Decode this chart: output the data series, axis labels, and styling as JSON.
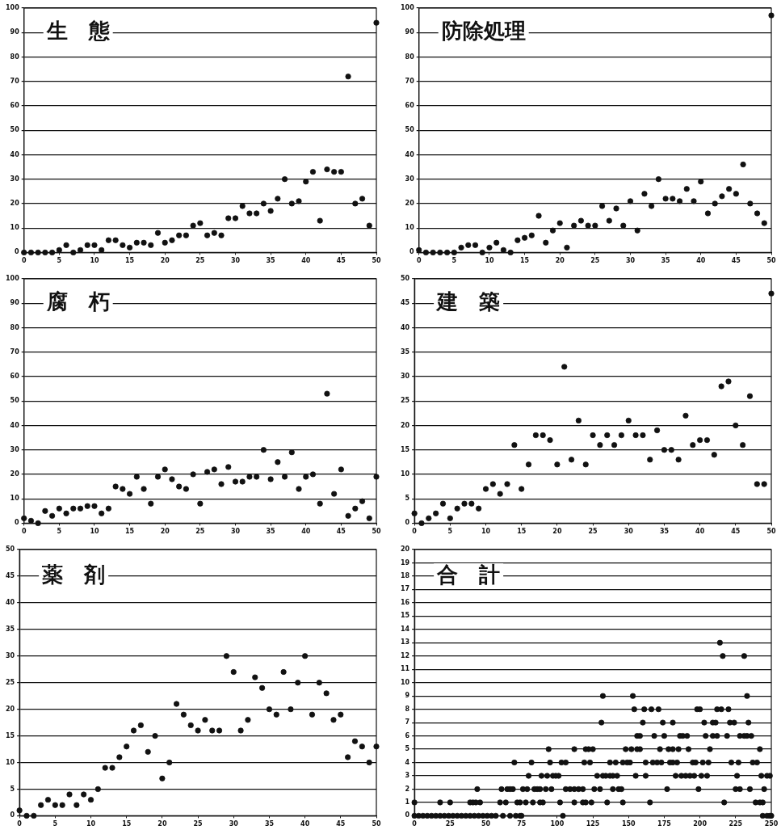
{
  "chart_data": [
    {
      "type": "scatter",
      "title": "生　態",
      "color": "#111111",
      "marker": "circle",
      "grid": "y",
      "x": [
        0,
        1,
        2,
        3,
        4,
        5,
        6,
        7,
        8,
        9,
        10,
        11,
        12,
        13,
        14,
        15,
        16,
        17,
        18,
        19,
        20,
        21,
        22,
        23,
        24,
        25,
        26,
        27,
        28,
        29,
        30,
        31,
        32,
        33,
        34,
        35,
        36,
        37,
        38,
        39,
        40,
        41,
        42,
        43,
        44,
        45,
        46,
        47,
        48,
        49,
        50
      ],
      "values": [
        0,
        0,
        0,
        0,
        0,
        1,
        3,
        0,
        1,
        3,
        3,
        1,
        5,
        5,
        3,
        2,
        4,
        4,
        3,
        8,
        4,
        5,
        7,
        7,
        11,
        12,
        7,
        8,
        7,
        14,
        14,
        19,
        16,
        16,
        20,
        17,
        22,
        30,
        20,
        21,
        29,
        33,
        13,
        34,
        33,
        33,
        72,
        20,
        22,
        11,
        94
      ],
      "xlim": [
        0,
        50
      ],
      "xticks": [
        0,
        5,
        10,
        15,
        20,
        25,
        30,
        35,
        40,
        45,
        50
      ],
      "ylim": [
        0,
        100
      ],
      "yticks": [
        0,
        10,
        20,
        30,
        40,
        50,
        60,
        70,
        80,
        90,
        100
      ]
    },
    {
      "type": "scatter",
      "title": "防除処理",
      "color": "#111111",
      "marker": "circle",
      "grid": "y",
      "x": [
        0,
        1,
        2,
        3,
        4,
        5,
        6,
        7,
        8,
        9,
        10,
        11,
        12,
        13,
        14,
        15,
        16,
        17,
        18,
        19,
        20,
        21,
        22,
        23,
        24,
        25,
        26,
        27,
        28,
        29,
        30,
        31,
        32,
        33,
        34,
        35,
        36,
        37,
        38,
        39,
        40,
        41,
        42,
        43,
        44,
        45,
        46,
        47,
        48,
        49,
        50
      ],
      "values": [
        1,
        0,
        0,
        0,
        0,
        0,
        2,
        3,
        3,
        0,
        2,
        4,
        1,
        0,
        5,
        6,
        7,
        15,
        4,
        9,
        12,
        2,
        11,
        13,
        11,
        11,
        19,
        13,
        18,
        11,
        21,
        9,
        24,
        19,
        30,
        22,
        22,
        21,
        26,
        21,
        29,
        16,
        20,
        23,
        26,
        24,
        36,
        20,
        16,
        12,
        97
      ],
      "xlim": [
        0,
        50
      ],
      "xticks": [
        0,
        5,
        10,
        15,
        20,
        25,
        30,
        35,
        40,
        45,
        50
      ],
      "ylim": [
        0,
        100
      ],
      "yticks": [
        0,
        10,
        20,
        30,
        40,
        50,
        60,
        70,
        80,
        90,
        100
      ]
    },
    {
      "type": "scatter",
      "title": "腐　朽",
      "color": "#111111",
      "marker": "circle",
      "grid": "y",
      "x": [
        0,
        1,
        2,
        3,
        4,
        5,
        6,
        7,
        8,
        9,
        10,
        11,
        12,
        13,
        14,
        15,
        16,
        17,
        18,
        19,
        20,
        21,
        22,
        23,
        24,
        25,
        26,
        27,
        28,
        29,
        30,
        31,
        32,
        33,
        34,
        35,
        36,
        37,
        38,
        39,
        40,
        41,
        42,
        43,
        44,
        45,
        46,
        47,
        48,
        49,
        50
      ],
      "values": [
        2,
        1,
        0,
        5,
        3,
        6,
        4,
        6,
        6,
        7,
        7,
        4,
        6,
        15,
        14,
        12,
        19,
        14,
        8,
        19,
        22,
        18,
        15,
        14,
        20,
        8,
        21,
        22,
        16,
        23,
        17,
        17,
        19,
        19,
        30,
        18,
        25,
        19,
        29,
        14,
        19,
        20,
        8,
        53,
        12,
        22,
        3,
        6,
        9,
        2,
        19
      ],
      "xlim": [
        0,
        50
      ],
      "xticks": [
        0,
        5,
        10,
        15,
        20,
        25,
        30,
        35,
        40,
        45,
        50
      ],
      "ylim": [
        0,
        100
      ],
      "yticks": [
        0,
        10,
        20,
        30,
        40,
        50,
        60,
        70,
        80,
        90,
        100
      ]
    },
    {
      "type": "scatter",
      "title": "建　築",
      "color": "#111111",
      "marker": "circle",
      "grid": "y",
      "x": [
        0,
        1,
        2,
        3,
        4,
        5,
        6,
        7,
        8,
        9,
        10,
        11,
        12,
        13,
        14,
        15,
        16,
        17,
        18,
        19,
        20,
        21,
        22,
        23,
        24,
        25,
        26,
        27,
        28,
        29,
        30,
        31,
        32,
        33,
        34,
        35,
        36,
        37,
        38,
        39,
        40,
        41,
        42,
        43,
        44,
        45,
        46,
        47,
        48,
        49,
        50
      ],
      "values": [
        2,
        0,
        1,
        2,
        4,
        1,
        3,
        4,
        4,
        3,
        7,
        8,
        6,
        8,
        16,
        7,
        12,
        18,
        18,
        17,
        12,
        32,
        13,
        21,
        12,
        18,
        16,
        18,
        16,
        18,
        21,
        18,
        18,
        13,
        19,
        15,
        15,
        13,
        22,
        16,
        17,
        17,
        14,
        28,
        29,
        20,
        16,
        26,
        8,
        8,
        47
      ],
      "xlim": [
        0,
        50
      ],
      "xticks": [
        0,
        5,
        10,
        15,
        20,
        25,
        30,
        35,
        40,
        45,
        50
      ],
      "ylim": [
        0,
        50
      ],
      "yticks": [
        0,
        5,
        10,
        15,
        20,
        25,
        30,
        35,
        40,
        45,
        50
      ]
    },
    {
      "type": "scatter",
      "title": "薬　剤",
      "color": "#111111",
      "marker": "circle",
      "grid": "y",
      "x": [
        0,
        1,
        2,
        3,
        4,
        5,
        6,
        7,
        8,
        9,
        10,
        11,
        12,
        13,
        14,
        15,
        16,
        17,
        18,
        19,
        20,
        21,
        22,
        23,
        24,
        25,
        26,
        27,
        28,
        29,
        30,
        31,
        32,
        33,
        34,
        35,
        36,
        37,
        38,
        39,
        40,
        41,
        42,
        43,
        44,
        45,
        46,
        47,
        48,
        49,
        50
      ],
      "values": [
        1,
        0,
        0,
        2,
        3,
        2,
        2,
        4,
        2,
        4,
        3,
        5,
        9,
        9,
        11,
        13,
        16,
        17,
        12,
        15,
        7,
        10,
        21,
        19,
        17,
        16,
        18,
        16,
        16,
        30,
        27,
        16,
        18,
        26,
        24,
        20,
        19,
        27,
        20,
        25,
        30,
        19,
        25,
        23,
        18,
        19,
        11,
        14,
        13,
        10,
        13
      ],
      "xlim": [
        0,
        50
      ],
      "xticks": [
        0,
        5,
        10,
        15,
        20,
        25,
        30,
        35,
        40,
        45,
        50
      ],
      "ylim": [
        0,
        50
      ],
      "yticks": [
        0,
        5,
        10,
        15,
        20,
        25,
        30,
        35,
        40,
        45,
        50
      ]
    },
    {
      "type": "scatter",
      "title": "合　計",
      "marker": "circle",
      "grid": "y",
      "series": [
        {
          "color": "#111111",
          "x": [
            0,
            3,
            6,
            9,
            12,
            15,
            18,
            21,
            24,
            27,
            30,
            33,
            36,
            39,
            42,
            45,
            48,
            51,
            54,
            57,
            62,
            67,
            71,
            74,
            75,
            104,
            244,
            247,
            249,
            250
          ],
          "values": [
            0,
            0,
            0,
            0,
            0,
            0,
            0,
            0,
            0,
            0,
            0,
            0,
            0,
            0,
            0,
            0,
            0,
            0,
            0,
            0,
            0,
            0,
            0,
            0,
            0,
            0,
            0,
            0,
            0,
            0
          ]
        },
        {
          "color": "#111111",
          "x": [
            0,
            18,
            25,
            39,
            41,
            43,
            46,
            60,
            64,
            72,
            74,
            78,
            83,
            88,
            90,
            102,
            112,
            118,
            120,
            124,
            135,
            146,
            165,
            217,
            239,
            242,
            244
          ],
          "values": [
            1,
            1,
            1,
            1,
            1,
            1,
            1,
            1,
            1,
            1,
            1,
            1,
            1,
            1,
            1,
            1,
            1,
            1,
            1,
            1,
            1,
            1,
            1,
            1,
            1,
            1,
            1
          ]
        },
        {
          "color": "#111111",
          "x": [
            44,
            61,
            65,
            67,
            69,
            76,
            79,
            84,
            86,
            88,
            92,
            96,
            106,
            109,
            112,
            115,
            118,
            126,
            130,
            139,
            143,
            145,
            177,
            199,
            225,
            228,
            235,
            245
          ],
          "values": [
            2,
            2,
            2,
            2,
            2,
            2,
            2,
            2,
            2,
            2,
            2,
            2,
            2,
            2,
            2,
            2,
            2,
            2,
            2,
            2,
            2,
            2,
            2,
            2,
            2,
            2,
            2,
            2
          ]
        },
        {
          "color": "#111111",
          "x": [
            80,
            89,
            93,
            97,
            99,
            101,
            128,
            132,
            134,
            137,
            139,
            142,
            155,
            162,
            183,
            187,
            190,
            193,
            196,
            201,
            205,
            226,
            243,
            247,
            249
          ],
          "values": [
            3,
            3,
            3,
            3,
            3,
            3,
            3,
            3,
            3,
            3,
            3,
            3,
            3,
            3,
            3,
            3,
            3,
            3,
            3,
            3,
            3,
            3,
            3,
            3,
            3
          ]
        },
        {
          "color": "#111111",
          "x": [
            70,
            82,
            95,
            103,
            106,
            119,
            123,
            137,
            141,
            146,
            149,
            151,
            162,
            167,
            170,
            173,
            179,
            181,
            184,
            195,
            197,
            202,
            206,
            222,
            227,
            237,
            240
          ],
          "values": [
            4,
            4,
            4,
            4,
            4,
            4,
            4,
            4,
            4,
            4,
            4,
            4,
            4,
            4,
            4,
            4,
            4,
            4,
            4,
            4,
            4,
            4,
            4,
            4,
            4,
            4,
            4
          ]
        },
        {
          "color": "#111111",
          "x": [
            94,
            112,
            120,
            122,
            125,
            148,
            152,
            156,
            158,
            172,
            178,
            181,
            185,
            192,
            207,
            242
          ],
          "values": [
            5,
            5,
            5,
            5,
            5,
            5,
            5,
            5,
            5,
            5,
            5,
            5,
            5,
            5,
            5,
            5
          ]
        },
        {
          "color": "#111111",
          "x": [
            156,
            158,
            168,
            175,
            186,
            188,
            191,
            204,
            209,
            212,
            219,
            228,
            231,
            233,
            236
          ],
          "values": [
            6,
            6,
            6,
            6,
            6,
            6,
            6,
            6,
            6,
            6,
            6,
            6,
            6,
            6,
            6
          ]
        },
        {
          "color": "#111111",
          "x": [
            131,
            160,
            174,
            181,
            203,
            209,
            211,
            221,
            224,
            234
          ],
          "values": [
            7,
            7,
            7,
            7,
            7,
            7,
            7,
            7,
            7,
            7
          ]
        },
        {
          "color": "#111111",
          "x": [
            154,
            161,
            166,
            171,
            198,
            200,
            212,
            215,
            220
          ],
          "values": [
            8,
            8,
            8,
            8,
            8,
            8,
            8,
            8,
            8
          ]
        },
        {
          "color": "#111111",
          "x": [
            132,
            153,
            233
          ],
          "values": [
            9,
            9,
            9
          ]
        },
        {
          "color": "#111111",
          "x": [
            216,
            231
          ],
          "values": [
            12,
            12
          ]
        },
        {
          "color": "#111111",
          "x": [
            214
          ],
          "values": [
            13
          ]
        }
      ],
      "xlim": [
        0,
        250
      ],
      "xticks": [
        0,
        25,
        50,
        75,
        100,
        125,
        150,
        175,
        200,
        225,
        250
      ],
      "ylim": [
        0,
        20
      ],
      "yticks": [
        0,
        1,
        2,
        3,
        4,
        5,
        6,
        7,
        8,
        9,
        10,
        11,
        12,
        13,
        14,
        15,
        16,
        17,
        18,
        19,
        20
      ]
    }
  ]
}
